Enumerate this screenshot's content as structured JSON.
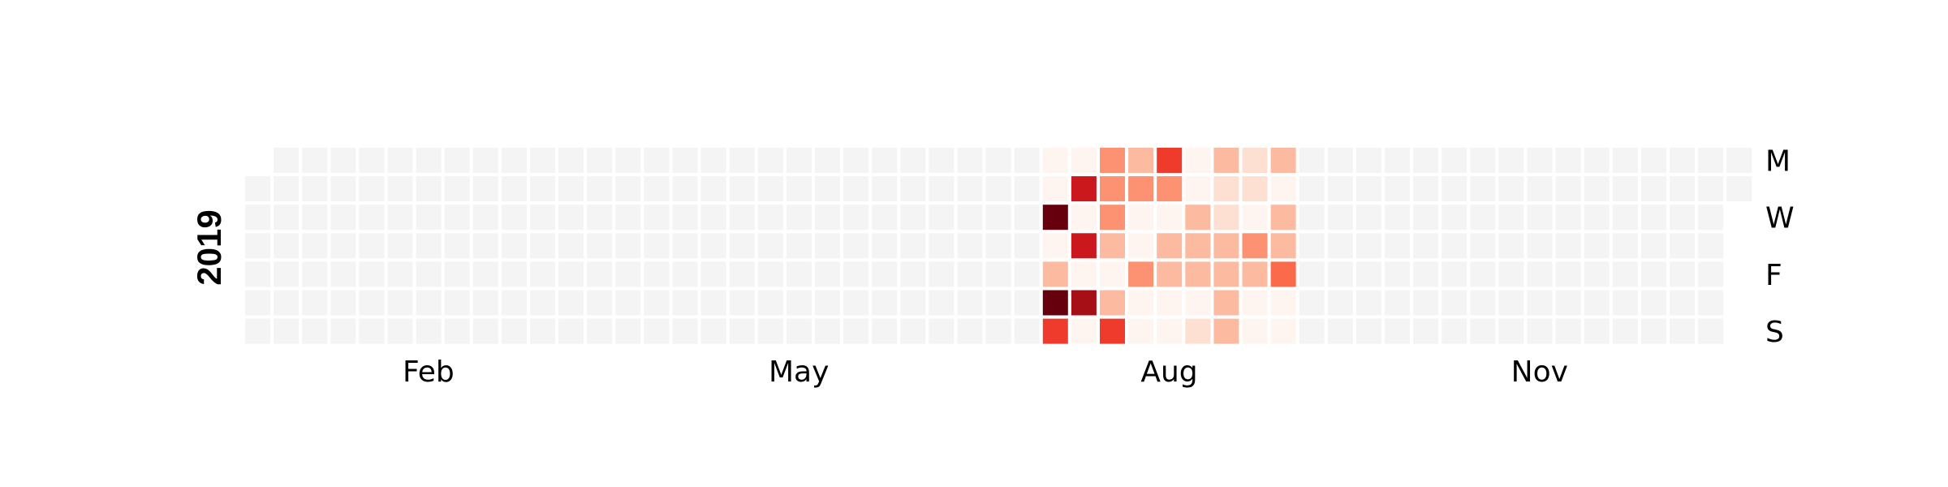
{
  "chart_data": {
    "type": "heatmap",
    "title": "",
    "year_label": "2019",
    "xlabel": "",
    "ylabel": "",
    "month_labels": [
      "Feb",
      "May",
      "Aug",
      "Nov"
    ],
    "weekday_labels": [
      "M",
      "W",
      "F",
      "S"
    ],
    "scale": "0-10 relative intensity (Reds colormap)",
    "empty_color": "#f4f4f4",
    "colormap": [
      "#fff5f0",
      "#fee0d2",
      "#fcbba1",
      "#fc9272",
      "#fb6a4a",
      "#ef3b2c",
      "#cb181d",
      "#a50f15",
      "#67000d"
    ],
    "weeks": [
      {
        "week": 28,
        "values": [
          0,
          0,
          10,
          0,
          2,
          10,
          6
        ]
      },
      {
        "week": 29,
        "values": [
          0,
          8,
          0,
          8,
          0,
          9,
          0
        ]
      },
      {
        "week": 30,
        "values": [
          4,
          4,
          4,
          2,
          0,
          2,
          6
        ]
      },
      {
        "week": 31,
        "values": [
          2,
          4,
          0,
          0,
          4,
          0,
          0
        ]
      },
      {
        "week": 32,
        "values": [
          6,
          4,
          0,
          2,
          3,
          0,
          0
        ]
      },
      {
        "week": 33,
        "values": [
          0,
          0,
          2,
          3,
          2,
          0,
          1
        ]
      },
      {
        "week": 34,
        "values": [
          3,
          1,
          1,
          2,
          3,
          3,
          2
        ]
      },
      {
        "week": 35,
        "values": [
          1,
          1,
          0,
          4,
          2,
          0,
          0
        ]
      },
      {
        "week": 36,
        "values": [
          3,
          0,
          2,
          3,
          5,
          0,
          0
        ]
      }
    ]
  }
}
